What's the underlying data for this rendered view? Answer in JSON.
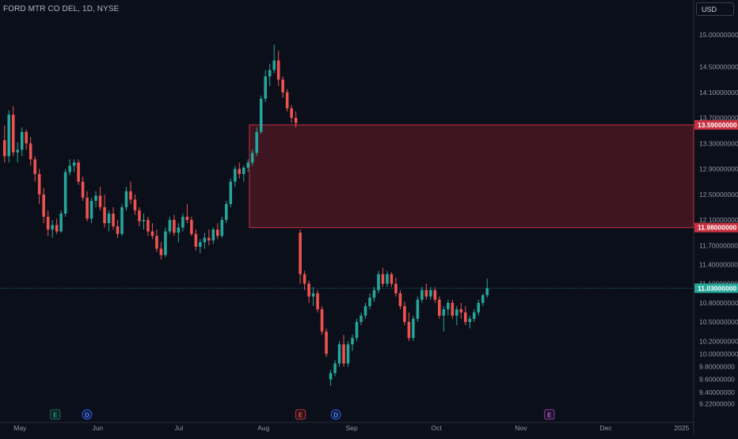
{
  "header": {
    "symbol": "FORD MTR CO DEL, 1D, NYSE",
    "currency": "USD"
  },
  "colors": {
    "background": "#0b0f1a",
    "up": "#26a69a",
    "down": "#ef5350",
    "zone_fill": "#3d1622",
    "zone_border": "#c8313f",
    "last_price": "#26a69a",
    "axis_text": "#9598a1"
  },
  "chart_data": {
    "type": "candlestick",
    "title": "FORD MTR CO DEL, 1D, NYSE",
    "y_ticks": [
      "15.00000000",
      "14.50000000",
      "14.10000000",
      "13.70000000",
      "13.30000000",
      "12.90000000",
      "12.50000000",
      "12.10000000",
      "11.70000000",
      "11.40000000",
      "11.10000000",
      "10.80000000",
      "10.50000000",
      "10.20000000",
      "10.00000000",
      "9.80000000",
      "9.60000000",
      "9.40000000",
      "9.22000000"
    ],
    "y_tick_values": [
      15.0,
      14.5,
      14.1,
      13.7,
      13.3,
      12.9,
      12.5,
      12.1,
      11.7,
      11.4,
      11.1,
      10.8,
      10.5,
      10.2,
      10.0,
      9.8,
      9.6,
      9.4,
      9.22
    ],
    "x_ticks": [
      "May",
      "Jun",
      "Jul",
      "Aug",
      "Sep",
      "Oct",
      "Nov",
      "Dec",
      "2025"
    ],
    "x_tick_index": [
      10,
      54,
      100,
      148,
      198,
      246,
      294,
      342,
      385
    ],
    "ylim": [
      9.1,
      15.3
    ],
    "zone": {
      "top": 13.59,
      "bottom": 11.98,
      "start_index": 140
    },
    "price_labels": [
      {
        "text": "13.59000000",
        "value": 13.59,
        "kind": "zone"
      },
      {
        "text": "11.98000000",
        "value": 11.98,
        "kind": "zone"
      },
      {
        "text": "11.03000000",
        "value": 11.03,
        "kind": "last"
      }
    ],
    "last_price": 11.03,
    "events": [
      {
        "letter": "E",
        "index": 0,
        "kind": "earnings-past"
      },
      {
        "letter": "D",
        "index": 18,
        "kind": "dividend"
      },
      {
        "letter": "E",
        "index": 139,
        "kind": "earnings"
      },
      {
        "letter": "D",
        "index": 159,
        "kind": "dividend"
      },
      {
        "letter": "E",
        "index": 280,
        "kind": "earnings-future"
      }
    ],
    "candles": [
      [
        13.35,
        13.58,
        13.0,
        13.1
      ],
      [
        13.1,
        13.82,
        13.0,
        13.75
      ],
      [
        13.75,
        13.88,
        13.1,
        13.16
      ],
      [
        13.16,
        13.32,
        13.0,
        13.2
      ],
      [
        13.2,
        13.55,
        13.1,
        13.48
      ],
      [
        13.48,
        13.52,
        13.2,
        13.3
      ],
      [
        13.3,
        13.4,
        12.95,
        13.05
      ],
      [
        13.05,
        13.1,
        12.7,
        12.82
      ],
      [
        12.82,
        12.9,
        12.35,
        12.5
      ],
      [
        12.5,
        12.6,
        12.05,
        12.15
      ],
      [
        12.15,
        12.25,
        11.85,
        11.95
      ],
      [
        11.95,
        12.1,
        11.82,
        12.02
      ],
      [
        12.02,
        12.12,
        11.88,
        11.92
      ],
      [
        11.92,
        12.25,
        11.9,
        12.2
      ],
      [
        12.2,
        12.9,
        12.15,
        12.85
      ],
      [
        12.85,
        13.05,
        12.8,
        12.95
      ],
      [
        12.95,
        13.05,
        12.85,
        13.0
      ],
      [
        13.0,
        13.05,
        12.65,
        12.7
      ],
      [
        12.7,
        12.78,
        12.4,
        12.45
      ],
      [
        12.45,
        12.55,
        12.08,
        12.12
      ],
      [
        12.12,
        12.45,
        12.05,
        12.4
      ],
      [
        12.4,
        12.55,
        12.3,
        12.48
      ],
      [
        12.48,
        12.62,
        12.25,
        12.3
      ],
      [
        12.3,
        12.5,
        11.98,
        12.05
      ],
      [
        12.05,
        12.25,
        11.92,
        12.2
      ],
      [
        12.2,
        12.3,
        11.95,
        12.0
      ],
      [
        12.0,
        12.1,
        11.82,
        11.88
      ],
      [
        11.88,
        12.35,
        11.85,
        12.3
      ],
      [
        12.3,
        12.62,
        12.25,
        12.55
      ],
      [
        12.55,
        12.7,
        12.35,
        12.42
      ],
      [
        12.42,
        12.5,
        12.18,
        12.25
      ],
      [
        12.25,
        12.3,
        12.0,
        12.08
      ],
      [
        12.08,
        12.2,
        11.95,
        12.1
      ],
      [
        12.1,
        12.15,
        11.85,
        11.92
      ],
      [
        11.92,
        12.05,
        11.8,
        11.85
      ],
      [
        11.85,
        11.95,
        11.6,
        11.65
      ],
      [
        11.65,
        11.75,
        11.48,
        11.55
      ],
      [
        11.55,
        11.98,
        11.52,
        11.92
      ],
      [
        11.92,
        12.15,
        11.88,
        12.1
      ],
      [
        12.1,
        12.18,
        11.85,
        11.9
      ],
      [
        11.9,
        12.05,
        11.75,
        11.98
      ],
      [
        11.98,
        12.2,
        11.92,
        12.15
      ],
      [
        12.15,
        12.35,
        12.05,
        12.1
      ],
      [
        12.1,
        12.15,
        11.85,
        11.88
      ],
      [
        11.88,
        11.95,
        11.62,
        11.68
      ],
      [
        11.68,
        11.8,
        11.58,
        11.75
      ],
      [
        11.75,
        11.9,
        11.65,
        11.82
      ],
      [
        11.82,
        11.95,
        11.7,
        11.78
      ],
      [
        11.78,
        11.98,
        11.72,
        11.95
      ],
      [
        11.95,
        12.05,
        11.8,
        11.85
      ],
      [
        11.85,
        12.15,
        11.82,
        12.1
      ],
      [
        12.1,
        12.4,
        12.05,
        12.35
      ],
      [
        12.35,
        12.75,
        12.3,
        12.7
      ],
      [
        12.7,
        12.95,
        12.62,
        12.9
      ],
      [
        12.9,
        13.0,
        12.75,
        12.82
      ],
      [
        12.82,
        12.95,
        12.7,
        12.92
      ],
      [
        12.92,
        13.05,
        12.85,
        13.0
      ],
      [
        13.0,
        13.2,
        12.95,
        13.15
      ],
      [
        13.15,
        13.55,
        13.1,
        13.48
      ],
      [
        13.48,
        14.05,
        13.45,
        14.0
      ],
      [
        14.0,
        14.45,
        13.95,
        14.35
      ],
      [
        14.35,
        14.55,
        14.2,
        14.45
      ],
      [
        14.45,
        14.85,
        14.4,
        14.6
      ],
      [
        14.6,
        14.75,
        14.2,
        14.3
      ],
      [
        14.3,
        14.35,
        14.02,
        14.1
      ],
      [
        14.1,
        14.15,
        13.8,
        13.85
      ],
      [
        13.85,
        13.9,
        13.62,
        13.7
      ],
      [
        13.7,
        13.8,
        13.55,
        13.62
      ],
      [
        11.9,
        11.95,
        11.1,
        11.25
      ],
      [
        11.25,
        11.3,
        11.0,
        11.1
      ],
      [
        11.1,
        11.15,
        10.8,
        10.9
      ],
      [
        10.9,
        11.05,
        10.75,
        10.95
      ],
      [
        10.95,
        11.0,
        10.65,
        10.7
      ],
      [
        10.7,
        10.75,
        10.3,
        10.35
      ],
      [
        10.35,
        10.4,
        9.95,
        10.0
      ],
      [
        9.6,
        9.75,
        9.5,
        9.7
      ],
      [
        9.7,
        9.9,
        9.65,
        9.85
      ],
      [
        9.85,
        10.2,
        9.8,
        10.15
      ],
      [
        10.15,
        10.3,
        9.8,
        9.85
      ],
      [
        9.85,
        10.2,
        9.8,
        10.15
      ],
      [
        10.15,
        10.3,
        10.05,
        10.25
      ],
      [
        10.25,
        10.55,
        10.2,
        10.5
      ],
      [
        10.5,
        10.65,
        10.45,
        10.6
      ],
      [
        10.6,
        10.8,
        10.55,
        10.75
      ],
      [
        10.75,
        10.95,
        10.7,
        10.88
      ],
      [
        10.88,
        11.05,
        10.82,
        11.0
      ],
      [
        11.0,
        11.3,
        10.95,
        11.25
      ],
      [
        11.25,
        11.35,
        11.05,
        11.1
      ],
      [
        11.1,
        11.3,
        11.05,
        11.25
      ],
      [
        11.25,
        11.28,
        11.05,
        11.1
      ],
      [
        11.1,
        11.2,
        10.9,
        10.95
      ],
      [
        10.95,
        11.0,
        10.7,
        10.75
      ],
      [
        10.75,
        10.82,
        10.45,
        10.5
      ],
      [
        10.5,
        10.65,
        10.2,
        10.25
      ],
      [
        10.25,
        10.6,
        10.2,
        10.55
      ],
      [
        10.55,
        10.9,
        10.5,
        10.85
      ],
      [
        10.85,
        11.05,
        10.8,
        11.0
      ],
      [
        11.0,
        11.1,
        10.85,
        10.9
      ],
      [
        10.9,
        11.05,
        10.85,
        11.0
      ],
      [
        11.0,
        11.05,
        10.8,
        10.85
      ],
      [
        10.85,
        10.9,
        10.55,
        10.6
      ],
      [
        10.6,
        10.75,
        10.35,
        10.7
      ],
      [
        10.7,
        10.85,
        10.6,
        10.8
      ],
      [
        10.8,
        10.85,
        10.55,
        10.6
      ],
      [
        10.6,
        10.75,
        10.45,
        10.7
      ],
      [
        10.7,
        10.8,
        10.55,
        10.65
      ],
      [
        10.65,
        10.75,
        10.45,
        10.5
      ],
      [
        10.5,
        10.6,
        10.4,
        10.55
      ],
      [
        10.55,
        10.7,
        10.5,
        10.65
      ],
      [
        10.65,
        10.85,
        10.6,
        10.8
      ],
      [
        10.8,
        10.95,
        10.75,
        10.92
      ],
      [
        10.92,
        11.18,
        10.88,
        11.03
      ]
    ]
  }
}
